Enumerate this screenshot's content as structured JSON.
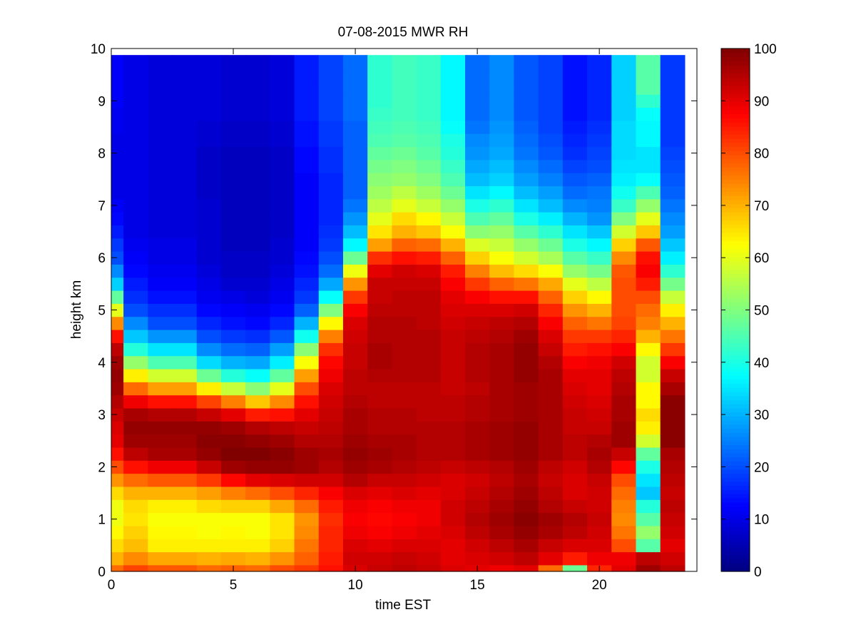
{
  "chart_data": {
    "type": "heatmap",
    "title": "07-08-2015 MWR RH",
    "xlabel": "time EST",
    "ylabel": "height km",
    "xlim": [
      0,
      24
    ],
    "ylim": [
      0,
      10
    ],
    "x_ticks": [
      "0",
      "5",
      "10",
      "15",
      "20"
    ],
    "y_ticks": [
      "0",
      "1",
      "2",
      "3",
      "4",
      "5",
      "6",
      "7",
      "8",
      "9",
      "10"
    ],
    "colorbar": {
      "colormap": "jet",
      "range": [
        0,
        100
      ],
      "ticks": [
        "0",
        "10",
        "20",
        "30",
        "40",
        "50",
        "60",
        "70",
        "80",
        "90",
        "100"
      ]
    },
    "x": [
      0,
      1,
      2,
      3,
      4,
      5,
      6,
      7,
      8,
      9,
      10,
      11,
      12,
      13,
      14,
      15,
      16,
      17,
      18,
      19,
      20,
      21,
      22,
      23
    ],
    "heights": [
      0,
      0.25,
      0.5,
      0.75,
      1,
      1.25,
      1.5,
      1.75,
      2,
      2.25,
      2.5,
      2.75,
      3,
      3.25,
      3.5,
      3.75,
      4,
      4.25,
      4.5,
      4.75,
      5,
      5.25,
      5.5,
      5.75,
      6,
      6.25,
      6.5,
      6.75,
      7,
      7.25,
      7.5,
      7.75,
      8,
      8.25,
      8.5,
      8.75,
      9,
      9.25,
      9.5,
      9.75
    ],
    "z": [
      [
        77,
        70,
        66,
        63,
        61,
        61,
        66,
        73,
        80,
        86,
        90,
        91,
        93,
        95,
        97,
        98,
        97,
        94,
        86,
        74,
        60,
        47,
        33,
        26,
        20,
        18,
        15,
        13,
        12,
        10,
        10,
        10,
        10,
        10,
        11,
        11,
        12,
        12,
        12,
        12
      ],
      [
        81,
        74,
        69,
        67,
        65,
        66,
        70,
        77,
        86,
        94,
        97,
        98,
        96,
        89,
        77,
        64,
        52,
        41,
        32,
        26,
        20,
        17,
        15,
        13,
        12,
        11,
        10,
        10,
        10,
        10,
        10,
        10,
        10,
        10,
        10,
        10,
        10,
        10,
        10,
        10
      ],
      [
        79,
        71,
        64,
        63,
        62,
        64,
        70,
        79,
        89,
        96,
        97,
        98,
        95,
        86,
        72,
        58,
        45,
        35,
        27,
        20,
        17,
        14,
        12,
        11,
        10,
        10,
        9,
        9,
        9,
        9,
        9,
        9,
        9,
        9,
        9,
        9,
        9,
        9,
        9,
        9
      ],
      [
        79,
        71,
        64,
        63,
        62,
        64,
        70,
        79,
        89,
        96,
        97,
        98,
        95,
        86,
        72,
        58,
        45,
        35,
        27,
        20,
        17,
        14,
        12,
        11,
        10,
        10,
        9,
        9,
        9,
        9,
        9,
        9,
        9,
        9,
        9,
        9,
        9,
        9,
        9,
        9
      ],
      [
        77,
        70,
        64,
        62,
        62,
        66,
        72,
        82,
        93,
        98,
        99,
        98,
        93,
        81,
        64,
        48,
        34,
        26,
        20,
        16,
        13,
        11,
        10,
        9,
        8,
        8,
        8,
        8,
        8,
        7,
        7,
        7,
        7,
        8,
        8,
        9,
        9,
        9,
        9,
        9
      ],
      [
        78,
        71,
        64,
        63,
        62,
        67,
        75,
        87,
        97,
        100,
        99,
        97,
        90,
        75,
        57,
        41,
        30,
        23,
        18,
        14,
        12,
        10,
        8,
        7,
        7,
        6,
        6,
        6,
        6,
        6,
        6,
        6,
        6,
        7,
        7,
        8,
        8,
        8,
        8,
        8
      ],
      [
        77,
        70,
        64,
        62,
        62,
        67,
        77,
        90,
        98,
        100,
        98,
        95,
        85,
        68,
        51,
        38,
        29,
        22,
        17,
        13,
        11,
        9,
        8,
        7,
        7,
        6,
        6,
        6,
        6,
        6,
        6,
        6,
        6,
        7,
        7,
        8,
        8,
        8,
        8,
        8
      ],
      [
        80,
        73,
        67,
        65,
        65,
        71,
        80,
        91,
        98,
        99,
        97,
        94,
        86,
        74,
        60,
        47,
        36,
        28,
        21,
        16,
        13,
        11,
        10,
        9,
        8,
        8,
        7,
        7,
        7,
        7,
        7,
        7,
        7,
        8,
        8,
        9,
        9,
        9,
        9,
        9
      ],
      [
        82,
        78,
        76,
        74,
        73,
        77,
        84,
        92,
        97,
        97,
        95,
        93,
        90,
        86,
        80,
        72,
        62,
        51,
        39,
        30,
        22,
        18,
        16,
        14,
        13,
        12,
        12,
        12,
        12,
        12,
        12,
        13,
        13,
        14,
        14,
        15,
        15,
        15,
        15,
        15
      ],
      [
        86,
        85,
        84,
        84,
        83,
        85,
        88,
        92,
        95,
        96,
        95,
        94,
        93,
        92,
        91,
        89,
        87,
        83,
        75,
        63,
        50,
        38,
        29,
        23,
        20,
        18,
        17,
        16,
        16,
        16,
        16,
        17,
        17,
        18,
        18,
        19,
        19,
        19,
        19,
        19
      ],
      [
        91,
        92,
        91,
        89,
        88,
        89,
        91,
        95,
        97,
        98,
        97,
        96,
        96,
        95,
        94,
        94,
        93,
        93,
        92,
        91,
        88,
        82,
        73,
        61,
        48,
        37,
        31,
        27,
        24,
        22,
        22,
        22,
        22,
        22,
        22,
        23,
        23,
        23,
        23,
        23
      ],
      [
        93,
        92,
        90,
        88,
        87,
        88,
        90,
        93,
        96,
        97,
        96,
        95,
        95,
        94,
        94,
        95,
        96,
        96,
        95,
        95,
        94,
        93,
        93,
        90,
        83,
        72,
        65,
        60,
        56,
        53,
        51,
        49,
        47,
        45,
        44,
        43,
        42,
        42,
        42,
        42
      ],
      [
        94,
        93,
        91,
        89,
        88,
        89,
        91,
        93,
        95,
        96,
        96,
        95,
        95,
        94,
        94,
        95,
        95,
        95,
        95,
        95,
        94,
        94,
        93,
        92,
        86,
        78,
        70,
        66,
        60,
        56,
        52,
        50,
        48,
        46,
        45,
        44,
        44,
        44,
        44,
        44
      ],
      [
        93,
        92,
        91,
        90,
        89,
        89,
        90,
        92,
        94,
        95,
        95,
        95,
        94,
        94,
        94,
        95,
        95,
        95,
        95,
        94,
        94,
        94,
        93,
        91,
        85,
        77,
        68,
        63,
        57,
        53,
        50,
        48,
        46,
        45,
        44,
        43,
        43,
        43,
        43,
        43
      ],
      [
        91,
        90,
        90,
        91,
        92,
        92,
        91,
        91,
        93,
        95,
        95,
        95,
        94,
        94,
        93,
        93,
        93,
        93,
        93,
        92,
        91,
        90,
        88,
        85,
        78,
        70,
        62,
        57,
        52,
        48,
        45,
        43,
        41,
        40,
        38,
        37,
        37,
        37,
        37,
        37
      ],
      [
        90,
        91,
        92,
        94,
        95,
        94,
        93,
        92,
        94,
        96,
        96,
        96,
        95,
        95,
        94,
        95,
        95,
        95,
        94,
        93,
        91,
        88,
        82,
        75,
        67,
        59,
        51,
        45,
        40,
        35,
        31,
        29,
        27,
        26,
        24,
        23,
        23,
        23,
        23,
        23
      ],
      [
        89,
        92,
        94,
        96,
        97,
        96,
        95,
        94,
        95,
        97,
        97,
        97,
        96,
        96,
        96,
        96,
        96,
        96,
        95,
        94,
        91,
        86,
        78,
        69,
        62,
        57,
        52,
        47,
        42,
        37,
        33,
        31,
        29,
        28,
        27,
        26,
        26,
        26,
        26,
        26
      ],
      [
        90,
        94,
        96,
        98,
        99,
        98,
        97,
        96,
        97,
        98,
        98,
        98,
        97,
        97,
        97,
        98,
        98,
        98,
        97,
        95,
        92,
        86,
        76,
        66,
        58,
        52,
        46,
        40,
        35,
        31,
        28,
        26,
        24,
        23,
        22,
        21,
        21,
        21,
        21,
        21
      ],
      [
        77,
        90,
        93,
        96,
        97,
        95,
        94,
        93,
        94,
        96,
        96,
        96,
        96,
        96,
        96,
        96,
        95,
        93,
        91,
        88,
        84,
        78,
        71,
        62,
        54,
        48,
        42,
        36,
        31,
        28,
        25,
        23,
        21,
        20,
        19,
        19,
        19,
        19,
        19,
        19
      ],
      [
        48,
        85,
        91,
        94,
        95,
        93,
        91,
        91,
        92,
        94,
        94,
        93,
        93,
        92,
        91,
        90,
        88,
        85,
        82,
        78,
        73,
        67,
        60,
        52,
        46,
        40,
        35,
        30,
        26,
        23,
        21,
        19,
        17,
        16,
        15,
        14,
        14,
        14,
        14,
        14
      ],
      [
        84,
        89,
        91,
        92,
        93,
        92,
        92,
        93,
        95,
        96,
        95,
        93,
        92,
        91,
        90,
        90,
        89,
        86,
        82,
        76,
        70,
        63,
        56,
        49,
        43,
        37,
        32,
        27,
        25,
        24,
        22,
        20,
        19,
        18,
        17,
        16,
        16,
        16,
        16,
        16
      ],
      [
        90,
        89,
        80,
        76,
        74,
        75,
        77,
        80,
        87,
        93,
        97,
        97,
        96,
        96,
        95,
        94,
        92,
        88,
        84,
        81,
        80,
        80,
        80,
        79,
        74,
        67,
        58,
        50,
        43,
        39,
        36,
        35,
        34,
        34,
        34,
        33,
        33,
        33,
        33,
        33
      ],
      [
        97,
        94,
        46,
        52,
        46,
        41,
        32,
        35,
        40,
        47,
        58,
        64,
        66,
        63,
        63,
        58,
        58,
        63,
        70,
        75,
        77,
        80,
        85,
        88,
        86,
        79,
        68,
        60,
        52,
        45,
        38,
        35,
        35,
        37,
        37,
        38,
        42,
        46,
        46,
        46
      ],
      [
        94,
        92,
        90,
        92,
        93,
        94,
        93,
        94,
        95,
        96,
        99,
        99,
        99,
        99,
        96,
        93,
        88,
        82,
        76,
        70,
        64,
        57,
        49,
        42,
        36,
        32,
        28,
        26,
        24,
        22,
        21,
        20,
        19,
        18,
        18,
        18,
        18,
        18,
        18,
        18
      ]
    ]
  }
}
